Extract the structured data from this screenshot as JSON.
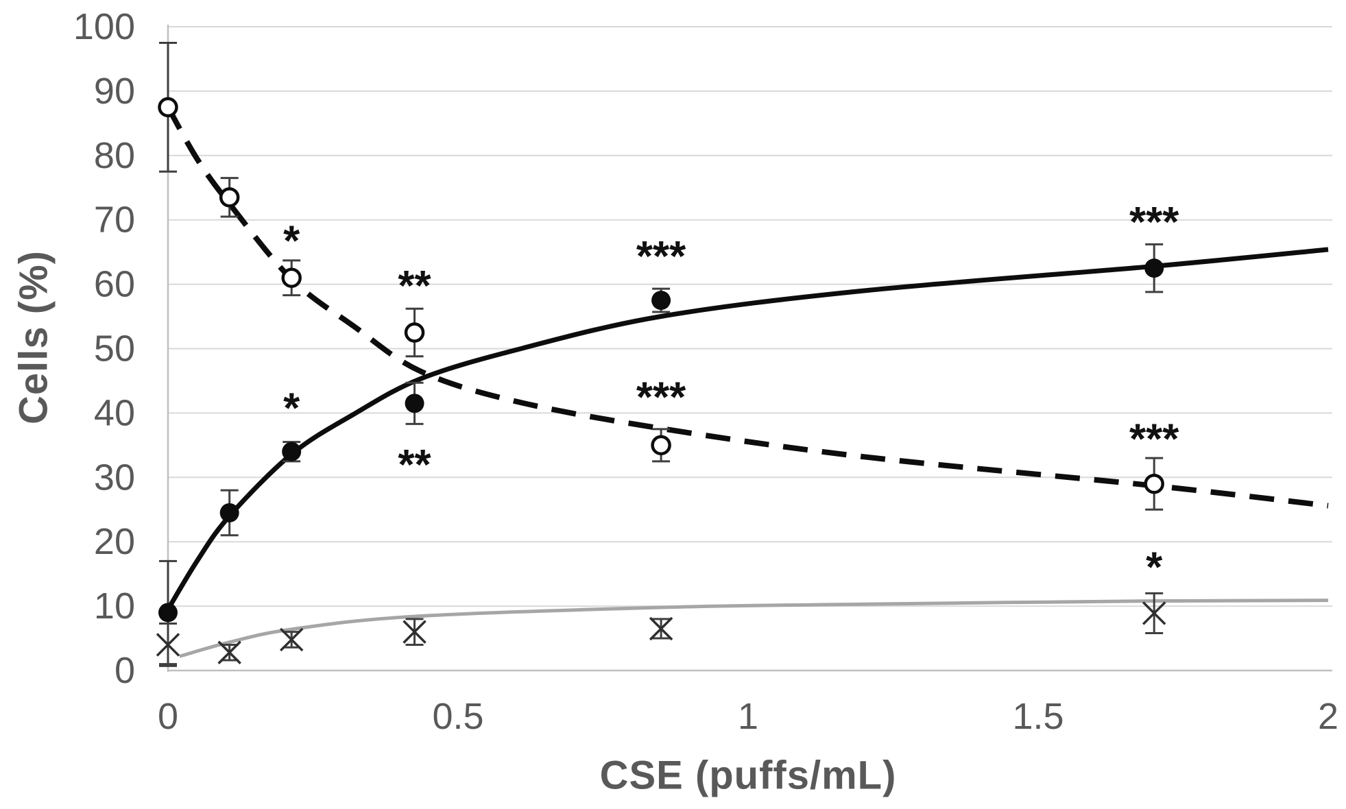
{
  "chart_data": {
    "type": "scatter",
    "title": "",
    "xlabel": "CSE (puffs/mL)",
    "ylabel": "Cells (%)",
    "xlim": [
      0,
      2
    ],
    "ylim": [
      0,
      100
    ],
    "x_tick_values": [
      0,
      0.5,
      1,
      1.5,
      2
    ],
    "x_tick_labels": [
      "0",
      "0.5",
      "1",
      "1.5",
      "2"
    ],
    "y_tick_values": [
      0,
      10,
      20,
      30,
      40,
      50,
      60,
      70,
      80,
      90,
      100
    ],
    "grid": "horizontal gridlines every 10 units, light gray, no vertical gridlines",
    "legend_position": "none",
    "x": [
      0,
      0.106,
      0.213,
      0.425,
      0.85,
      1.7
    ],
    "series": [
      {
        "name": "open-circle-dashed-declining",
        "marker": "open-circle",
        "line_style": "dashed",
        "color": "#0d0d0d",
        "values": [
          87.5,
          73.5,
          61,
          52.5,
          35,
          29
        ],
        "errors": [
          10,
          3,
          2.7,
          3.7,
          2.5,
          4
        ],
        "significance": [
          "",
          "",
          "*",
          "**",
          "***",
          "***"
        ],
        "sig_y": [
          null,
          null,
          67.7,
          60.7,
          43.4,
          36.9
        ],
        "trend": [
          [
            0,
            87.5
          ],
          [
            0.05,
            79.5
          ],
          [
            0.106,
            72.5
          ],
          [
            0.213,
            60.8
          ],
          [
            0.32,
            53.5
          ],
          [
            0.435,
            46.5
          ],
          [
            0.6,
            41.8
          ],
          [
            0.85,
            37.6
          ],
          [
            1.2,
            33.2
          ],
          [
            1.7,
            28.7
          ],
          [
            2,
            25.6
          ]
        ]
      },
      {
        "name": "filled-circle-solid-rising",
        "marker": "filled-circle",
        "line_style": "solid",
        "color": "#0d0d0d",
        "values": [
          9,
          24.5,
          34,
          41.5,
          57.5,
          62.5
        ],
        "errors": [
          8,
          3.5,
          1.5,
          3.2,
          1.8,
          3.7
        ],
        "significance": [
          "",
          "",
          "*",
          "**",
          "***",
          "***"
        ],
        "sig_y": [
          null,
          null,
          41.7,
          32.9,
          65.3,
          70.6
        ],
        "trend": [
          [
            0,
            9.5
          ],
          [
            0.05,
            17
          ],
          [
            0.106,
            24
          ],
          [
            0.213,
            33.6
          ],
          [
            0.32,
            39.8
          ],
          [
            0.435,
            45.3
          ],
          [
            0.6,
            49.8
          ],
          [
            0.85,
            55
          ],
          [
            1.2,
            59
          ],
          [
            1.7,
            62.8
          ],
          [
            2,
            65.4
          ]
        ]
      },
      {
        "name": "x-marker-gray-low",
        "marker": "x-cross",
        "line_style": "solid",
        "color": "#a6a6a6",
        "marker_color": "#2f2f2f",
        "values": [
          4,
          2.8,
          4.8,
          6,
          6.5,
          8.9
        ],
        "errors": [
          3.3,
          1.2,
          1.2,
          2,
          1.5,
          3.1
        ],
        "significance": [
          "",
          "",
          "",
          "",
          "",
          "*"
        ],
        "sig_y": [
          null,
          null,
          null,
          null,
          null,
          17
        ],
        "trend": [
          [
            0.02,
            2.2
          ],
          [
            0.106,
            4.4
          ],
          [
            0.213,
            6.4
          ],
          [
            0.425,
            8.4
          ],
          [
            0.85,
            9.8
          ],
          [
            1.2,
            10.3
          ],
          [
            1.7,
            10.8
          ],
          [
            2,
            10.9
          ]
        ]
      }
    ],
    "style": {
      "background": "#ffffff",
      "grid_color": "#d9d9d9",
      "axis_color": "#bfbfbf",
      "tick_text_color": "#595959",
      "title_text_color": "#595959",
      "error_bar_color": "#3f3f3f",
      "sig_text_color": "#111111"
    }
  }
}
